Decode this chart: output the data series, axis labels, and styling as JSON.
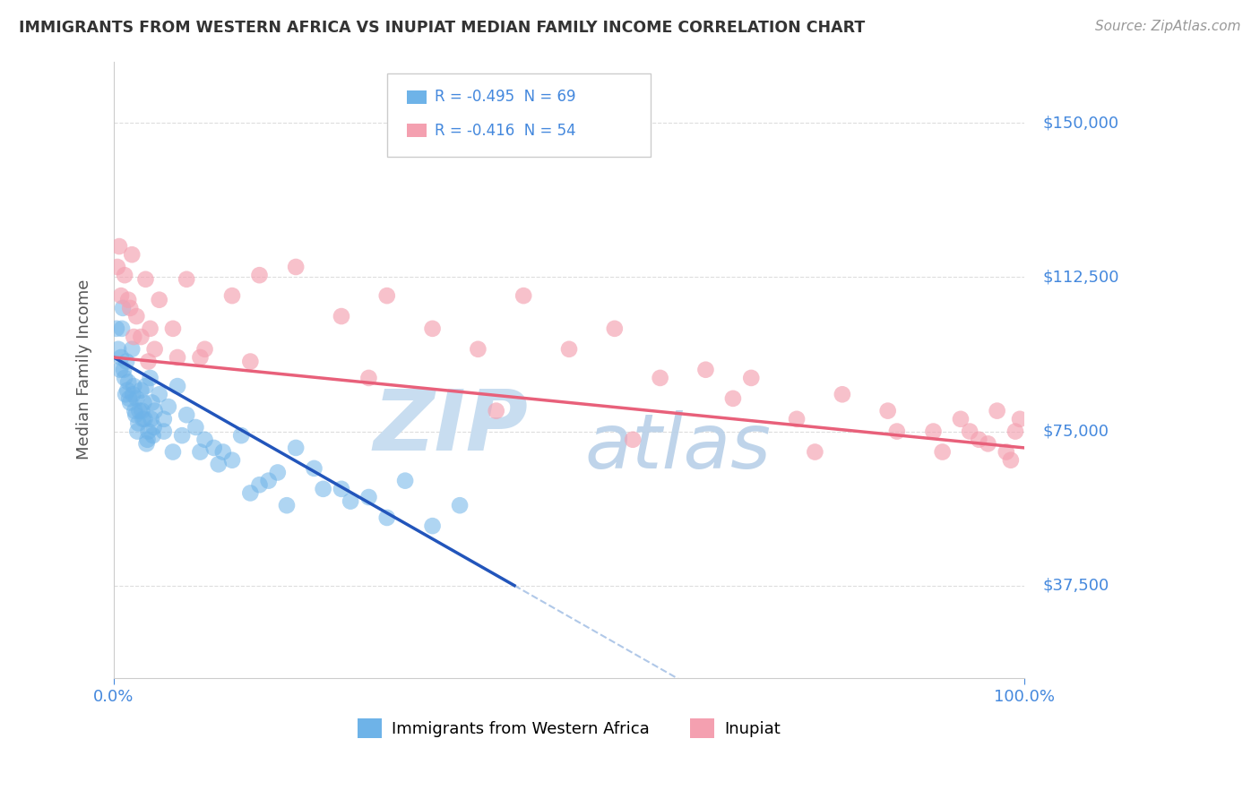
{
  "title": "IMMIGRANTS FROM WESTERN AFRICA VS INUPIAT MEDIAN FAMILY INCOME CORRELATION CHART",
  "source": "Source: ZipAtlas.com",
  "ylabel": "Median Family Income",
  "xlabel": "",
  "xmin": 0.0,
  "xmax": 100.0,
  "ymin": 15000,
  "ymax": 165000,
  "yticks": [
    37500,
    75000,
    112500,
    150000
  ],
  "ytick_labels": [
    "$37,500",
    "$75,000",
    "$112,500",
    "$150,000"
  ],
  "xticks": [
    0.0,
    100.0
  ],
  "xtick_labels": [
    "0.0%",
    "100.0%"
  ],
  "legend_r1": "R = -0.495  N = 69",
  "legend_r2": "R = -0.416  N = 54",
  "series1_name": "Immigrants from Western Africa",
  "series2_name": "Inupiat",
  "series1_color": "#6eb3e8",
  "series2_color": "#f4a0b0",
  "trend1_color": "#2255bb",
  "trend2_color": "#e8607a",
  "dashed_color": "#b0c8e8",
  "title_color": "#333333",
  "axis_label_color": "#555555",
  "tick_label_color": "#4488dd",
  "watermark_color1": "#c8ddf0",
  "watermark_color2": "#b8d0e8",
  "background_color": "#ffffff",
  "trend1_x0": 0.0,
  "trend1_y0": 93000,
  "trend1_x1": 44.0,
  "trend1_y1": 37500,
  "trend2_x0": 0.0,
  "trend2_y0": 93000,
  "trend2_x1": 100.0,
  "trend2_y1": 71000,
  "dashed_x0": 44.0,
  "dashed_x1": 100.0,
  "series1_x": [
    0.3,
    0.5,
    0.7,
    0.9,
    1.0,
    1.2,
    1.4,
    1.6,
    1.8,
    2.0,
    2.2,
    2.5,
    2.8,
    3.0,
    3.2,
    3.5,
    3.8,
    4.0,
    4.2,
    4.5,
    5.0,
    5.5,
    6.0,
    7.0,
    8.0,
    9.0,
    10.0,
    11.0,
    12.0,
    14.0,
    16.0,
    18.0,
    20.0,
    22.0,
    25.0,
    28.0,
    32.0,
    38.0,
    1.1,
    1.3,
    1.7,
    2.1,
    2.4,
    2.7,
    3.1,
    3.4,
    3.7,
    4.1,
    4.4,
    0.8,
    1.5,
    2.3,
    2.6,
    3.3,
    3.6,
    4.3,
    5.5,
    6.5,
    7.5,
    9.5,
    11.5,
    13.0,
    15.0,
    17.0,
    19.0,
    23.0,
    26.0,
    30.0,
    35.0
  ],
  "series1_y": [
    100000,
    95000,
    90000,
    100000,
    105000,
    88000,
    92000,
    87000,
    82000,
    95000,
    86000,
    83000,
    80000,
    85000,
    78000,
    86000,
    75000,
    88000,
    82000,
    80000,
    84000,
    78000,
    81000,
    86000,
    79000,
    76000,
    73000,
    71000,
    70000,
    74000,
    62000,
    65000,
    71000,
    66000,
    61000,
    59000,
    63000,
    57000,
    90000,
    84000,
    83000,
    84000,
    79000,
    77000,
    80000,
    78000,
    73000,
    78000,
    76000,
    93000,
    85000,
    80000,
    75000,
    82000,
    72000,
    74000,
    75000,
    70000,
    74000,
    70000,
    67000,
    68000,
    60000,
    63000,
    57000,
    61000,
    58000,
    54000,
    52000
  ],
  "series2_x": [
    0.4,
    0.8,
    1.2,
    1.6,
    2.0,
    2.5,
    3.0,
    3.5,
    4.0,
    5.0,
    6.5,
    8.0,
    10.0,
    13.0,
    16.0,
    20.0,
    25.0,
    30.0,
    35.0,
    40.0,
    45.0,
    50.0,
    55.0,
    60.0,
    65.0,
    70.0,
    75.0,
    80.0,
    85.0,
    90.0,
    93.0,
    95.0,
    97.0,
    98.0,
    99.0,
    99.5,
    2.2,
    3.8,
    7.0,
    15.0,
    28.0,
    42.0,
    57.0,
    68.0,
    77.0,
    86.0,
    91.0,
    94.0,
    96.0,
    98.5,
    0.6,
    1.8,
    4.5,
    9.5
  ],
  "series2_y": [
    115000,
    108000,
    113000,
    107000,
    118000,
    103000,
    98000,
    112000,
    100000,
    107000,
    100000,
    112000,
    95000,
    108000,
    113000,
    115000,
    103000,
    108000,
    100000,
    95000,
    108000,
    95000,
    100000,
    88000,
    90000,
    88000,
    78000,
    84000,
    80000,
    75000,
    78000,
    73000,
    80000,
    70000,
    75000,
    78000,
    98000,
    92000,
    93000,
    92000,
    88000,
    80000,
    73000,
    83000,
    70000,
    75000,
    70000,
    75000,
    72000,
    68000,
    120000,
    105000,
    95000,
    93000
  ]
}
